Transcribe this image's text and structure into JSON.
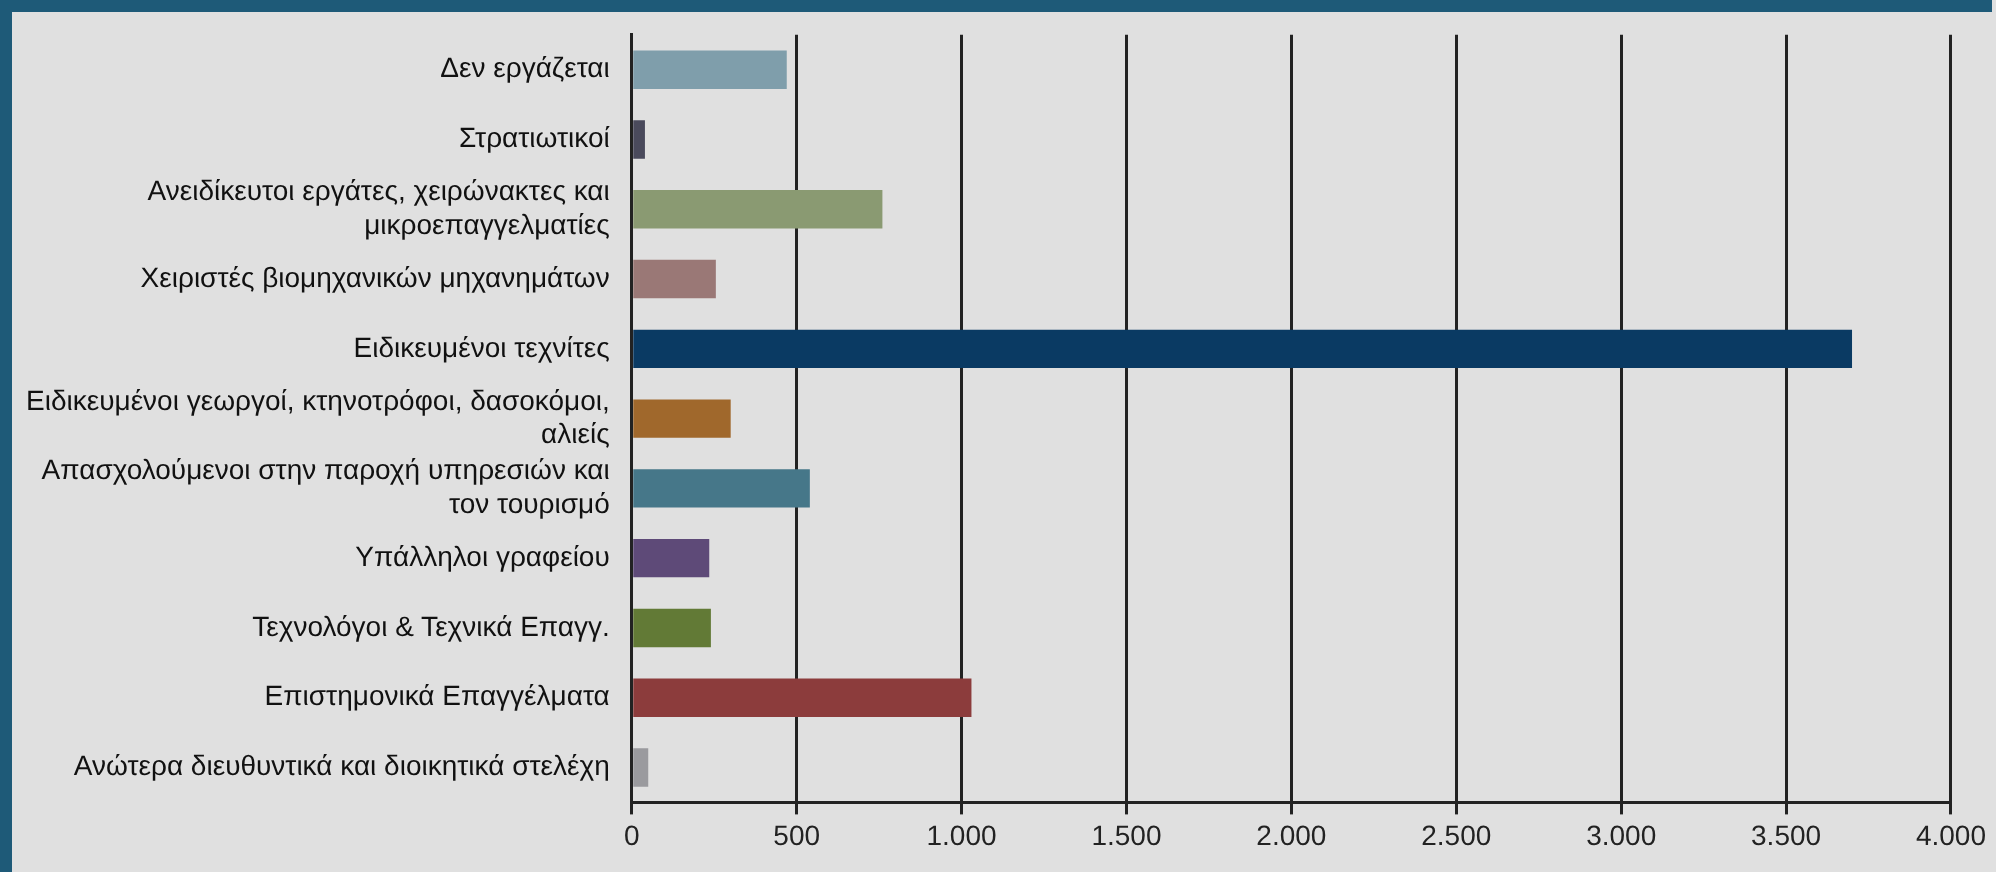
{
  "chart_data": {
    "type": "bar",
    "orientation": "horizontal",
    "categories": [
      "Δεν εργάζεται",
      "Στρατιωτικοί",
      "Ανειδίκευτοι εργάτες, χειρώνακτες και μικροεπαγγελματίες",
      "Χειριστές βιομηχανικών μηχανημάτων",
      "Ειδικευμένοι τεχνίτες",
      "Ειδικευμένοι γεωργοί, κτηνοτρόφοι, δασοκόμοι, αλιείς",
      "Απασχολούμενοι στην παροχή υπηρεσιών και τον τουρισμό",
      "Υπάλληλοι γραφείου",
      "Τεχνολόγοι & Τεχνικά Επαγγ.",
      "Επιστημονικά Επαγγέλματα",
      "Ανώτερα διευθυντικά και διοικητικά στελέχη"
    ],
    "values": [
      470,
      40,
      760,
      255,
      3700,
      300,
      540,
      235,
      240,
      1030,
      50
    ],
    "colors": [
      "#7f9eab",
      "#4a4a5c",
      "#8a9a72",
      "#9a7876",
      "#0a3a63",
      "#a0682c",
      "#467789",
      "#5e4a78",
      "#627a36",
      "#8c3c3c",
      "#9a9a9e"
    ],
    "xlim": [
      0,
      4000
    ],
    "xticks": [
      0,
      500,
      {
        "value": 1000,
        "label": "1.000"
      },
      {
        "value": 1500,
        "label": "1.500"
      },
      {
        "value": 2000,
        "label": "2.000"
      },
      {
        "value": 2500,
        "label": "2.500"
      },
      {
        "value": 3000,
        "label": "3.000"
      },
      {
        "value": 3500,
        "label": "3.500"
      },
      {
        "value": 4000,
        "label": "4.000"
      }
    ],
    "grid": "x",
    "legend": false
  }
}
